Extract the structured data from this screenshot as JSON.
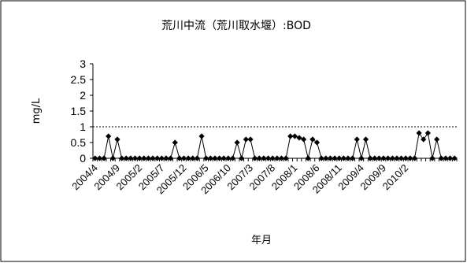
{
  "chart_data": {
    "type": "line",
    "title": "荒川中流（荒川取水堰）:BOD",
    "xlabel": "年月",
    "ylabel": "mg/L",
    "ylim": [
      0,
      3
    ],
    "yticks": [
      "0",
      "0.5",
      "1",
      "1.5",
      "2",
      "2.5",
      "3"
    ],
    "x_tick_labels": [
      "2004/4",
      "2004/9",
      "2005/2",
      "2005/7",
      "2005/12",
      "2006/5",
      "2006/10",
      "2007/3",
      "2007/8",
      "2008/1",
      "2008/6",
      "2008/11",
      "2009/4",
      "2009/9",
      "2010/2"
    ],
    "grid": false,
    "legend": "none",
    "reference_line": {
      "value": 1,
      "style": "dotted"
    },
    "series": [
      {
        "marker": "diamond",
        "color": "#000000",
        "start": "2004/4",
        "interval": "month",
        "values": [
          0,
          0,
          0,
          0.7,
          0,
          0.6,
          0,
          0,
          0,
          0,
          0,
          0,
          0,
          0,
          0,
          0,
          0,
          0,
          0.5,
          0,
          0,
          0,
          0,
          0,
          0.7,
          0,
          0,
          0,
          0,
          0,
          0,
          0,
          0.5,
          0,
          0.6,
          0.6,
          0,
          0,
          0,
          0,
          0,
          0,
          0,
          0,
          0.7,
          0.7,
          0.65,
          0.6,
          0,
          0.6,
          0.5,
          0,
          0,
          0,
          0,
          0,
          0,
          0,
          0,
          0.6,
          0,
          0.6,
          0,
          0,
          0,
          0,
          0,
          0,
          0,
          0,
          0,
          0,
          0,
          0.8,
          0.6,
          0.8,
          0,
          0.6,
          0,
          0,
          0,
          0
        ]
      }
    ]
  }
}
